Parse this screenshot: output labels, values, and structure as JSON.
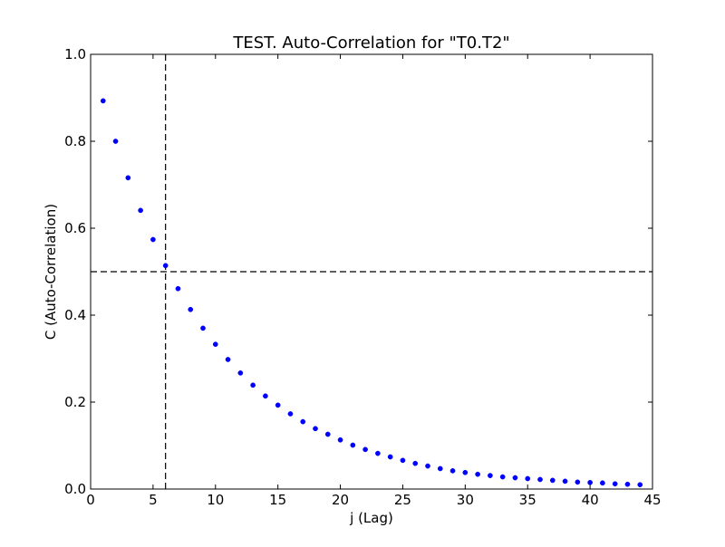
{
  "chart_data": {
    "type": "scatter",
    "title": "TEST. Auto-Correlation for \"T0.T2\"",
    "xlabel": "j (Lag)",
    "ylabel": "C (Auto-Correlation)",
    "xlim": [
      0,
      45
    ],
    "ylim": [
      0.0,
      1.0
    ],
    "grid": false,
    "x_ticks": [
      0,
      5,
      10,
      15,
      20,
      25,
      30,
      35,
      40,
      45
    ],
    "x_tick_labels": [
      "0",
      "5",
      "10",
      "15",
      "20",
      "25",
      "30",
      "35",
      "40",
      "45"
    ],
    "y_ticks": [
      0.0,
      0.2,
      0.4,
      0.6,
      0.8,
      1.0
    ],
    "y_tick_labels": [
      "0.0",
      "0.2",
      "0.4",
      "0.6",
      "0.8",
      "1.0"
    ],
    "series": [
      {
        "color": "#0000ff",
        "x": [
          1,
          2,
          3,
          4,
          5,
          6,
          7,
          8,
          9,
          10,
          11,
          12,
          13,
          14,
          15,
          16,
          17,
          18,
          19,
          20,
          21,
          22,
          23,
          24,
          25,
          26,
          27,
          28,
          29,
          30,
          31,
          32,
          33,
          34,
          35,
          36,
          37,
          38,
          39,
          40,
          41,
          42,
          43,
          44
        ],
        "values": [
          0.893,
          0.8,
          0.716,
          0.641,
          0.574,
          0.514,
          0.461,
          0.413,
          0.37,
          0.333,
          0.298,
          0.267,
          0.239,
          0.214,
          0.193,
          0.173,
          0.155,
          0.139,
          0.126,
          0.113,
          0.101,
          0.091,
          0.082,
          0.074,
          0.066,
          0.059,
          0.053,
          0.047,
          0.042,
          0.038,
          0.034,
          0.031,
          0.028,
          0.026,
          0.024,
          0.022,
          0.02,
          0.018,
          0.016,
          0.015,
          0.014,
          0.012,
          0.011,
          0.01
        ]
      }
    ],
    "reference_lines": [
      {
        "orientation": "vertical",
        "value": 6,
        "style": "dashed",
        "color": "#000000"
      },
      {
        "orientation": "horizontal",
        "value": 0.5,
        "style": "dashed",
        "color": "#000000"
      }
    ]
  }
}
